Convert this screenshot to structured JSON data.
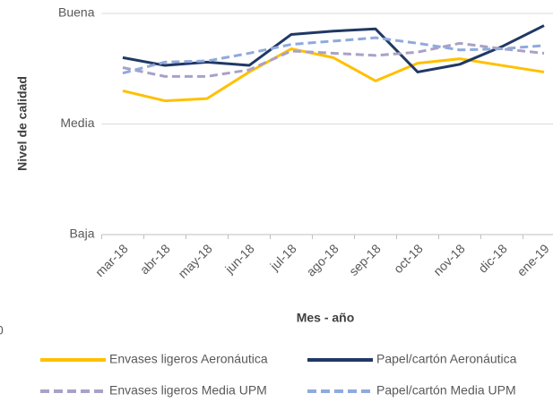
{
  "chart_data": {
    "type": "line",
    "y_axis_label": "Nivel de calidad",
    "x_axis_label": "Mes - año",
    "annotation": "0",
    "categories": [
      "mar-18",
      "abr-18",
      "may-18",
      "jun-18",
      "jul-18",
      "ago-18",
      "sep-18",
      "oct-18",
      "nov-18",
      "dic-18",
      "ene-19"
    ],
    "ylim": [
      0,
      2
    ],
    "yticks": [
      {
        "value": 0,
        "label": "Baja"
      },
      {
        "value": 1,
        "label": "Media"
      },
      {
        "value": 2,
        "label": "Buena"
      }
    ],
    "grid": true,
    "legend": "bottom",
    "series": [
      {
        "name": "Envases ligeros Aeronáutica",
        "color": "#ffc000",
        "dashed": false,
        "values": [
          1.3,
          1.21,
          1.23,
          1.47,
          1.68,
          1.6,
          1.39,
          1.55,
          1.59,
          1.53,
          1.47
        ]
      },
      {
        "name": "Papel/cartón Aeronáutica",
        "color": "#203864",
        "dashed": false,
        "values": [
          1.6,
          1.53,
          1.56,
          1.53,
          1.81,
          1.84,
          1.86,
          1.47,
          1.54,
          1.7,
          1.89
        ]
      },
      {
        "name": "Envases ligeros Media UPM",
        "color": "#a9a1c8",
        "dashed": true,
        "values": [
          1.51,
          1.43,
          1.43,
          1.49,
          1.66,
          1.64,
          1.62,
          1.65,
          1.73,
          1.68,
          1.64
        ]
      },
      {
        "name": "Papel/cartón Media UPM",
        "color": "#8faadc",
        "dashed": true,
        "values": [
          1.46,
          1.56,
          1.57,
          1.64,
          1.72,
          1.75,
          1.78,
          1.73,
          1.67,
          1.68,
          1.71
        ]
      }
    ]
  }
}
